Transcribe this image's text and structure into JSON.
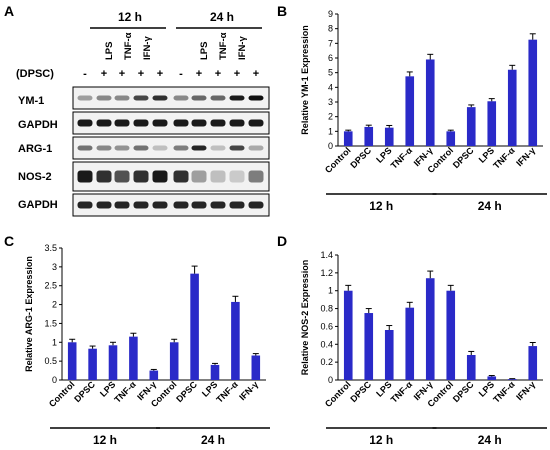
{
  "panel_labels": {
    "a": "A",
    "b": "B",
    "c": "C",
    "d": "D"
  },
  "blot": {
    "time_groups": [
      "12 h",
      "24 h"
    ],
    "treatments": [
      "LPS",
      "TNF-α",
      "IFN-γ"
    ],
    "dpsc_label": "(DPSC)",
    "dpsc_signs": [
      "-",
      "+",
      "+",
      "+",
      "+",
      "-",
      "+",
      "+",
      "+",
      "+"
    ],
    "rows": [
      "YM-1",
      "GAPDH",
      "ARG-1",
      "NOS-2",
      "GAPDH"
    ]
  },
  "chart_data": [
    {
      "type": "bar",
      "ylabel": "Relative YM-1 Expression",
      "categories": [
        "Control",
        "DPSC",
        "LPS",
        "TNF-α",
        "IFN-γ",
        "Control",
        "DPSC",
        "LPS",
        "TNF-α",
        "IFN-γ"
      ],
      "groups": [
        "12 h",
        "24 h"
      ],
      "values": [
        1.0,
        1.3,
        1.25,
        4.75,
        5.9,
        1.0,
        2.65,
        3.05,
        5.2,
        7.25
      ],
      "errors": [
        0.08,
        0.12,
        0.15,
        0.3,
        0.35,
        0.08,
        0.15,
        0.18,
        0.3,
        0.4
      ],
      "ylim": [
        0,
        9
      ],
      "ticks": [
        0,
        1,
        2,
        3,
        4,
        5,
        6,
        7,
        8,
        9
      ],
      "tick_labels": [
        "0",
        "1",
        "2",
        "3",
        "4",
        "5",
        "6",
        "7",
        "8",
        "9"
      ]
    },
    {
      "type": "bar",
      "ylabel": "Relative ARG-1 Expression",
      "categories": [
        "Control",
        "DPSC",
        "LPS",
        "TNF-α",
        "IFN-γ",
        "Control",
        "DPSC",
        "LPS",
        "TNF-α",
        "IFN-γ"
      ],
      "groups": [
        "12 h",
        "24 h"
      ],
      "values": [
        1.0,
        0.83,
        0.92,
        1.15,
        0.25,
        1.0,
        2.82,
        0.4,
        2.07,
        0.65
      ],
      "errors": [
        0.08,
        0.07,
        0.08,
        0.09,
        0.03,
        0.08,
        0.2,
        0.04,
        0.15,
        0.05
      ],
      "ylim": [
        0,
        3.5
      ],
      "ticks": [
        0,
        0.5,
        1,
        1.5,
        2,
        2.5,
        3,
        3.5
      ],
      "tick_labels": [
        "0",
        "0.5",
        "1",
        "1.5",
        "2",
        "2.5",
        "3",
        "3.5"
      ]
    },
    {
      "type": "bar",
      "ylabel": "Relative NOS-2 Expression",
      "categories": [
        "Control",
        "DPSC",
        "LPS",
        "TNF-α",
        "IFN-γ",
        "Control",
        "DPSC",
        "LPS",
        "TNF-α",
        "IFN-γ"
      ],
      "groups": [
        "12 h",
        "24 h"
      ],
      "values": [
        1.0,
        0.75,
        0.56,
        0.81,
        1.14,
        1.0,
        0.28,
        0.04,
        0.01,
        0.38
      ],
      "errors": [
        0.06,
        0.05,
        0.05,
        0.06,
        0.08,
        0.06,
        0.04,
        0.01,
        0.005,
        0.04
      ],
      "ylim": [
        0,
        1.4
      ],
      "ticks": [
        0,
        0.2,
        0.4,
        0.6,
        0.8,
        1,
        1.2,
        1.4
      ],
      "tick_labels": [
        "0",
        "0.2",
        "0.4",
        "0.6",
        "0.8",
        "1",
        "1.2",
        "1.4"
      ]
    }
  ]
}
